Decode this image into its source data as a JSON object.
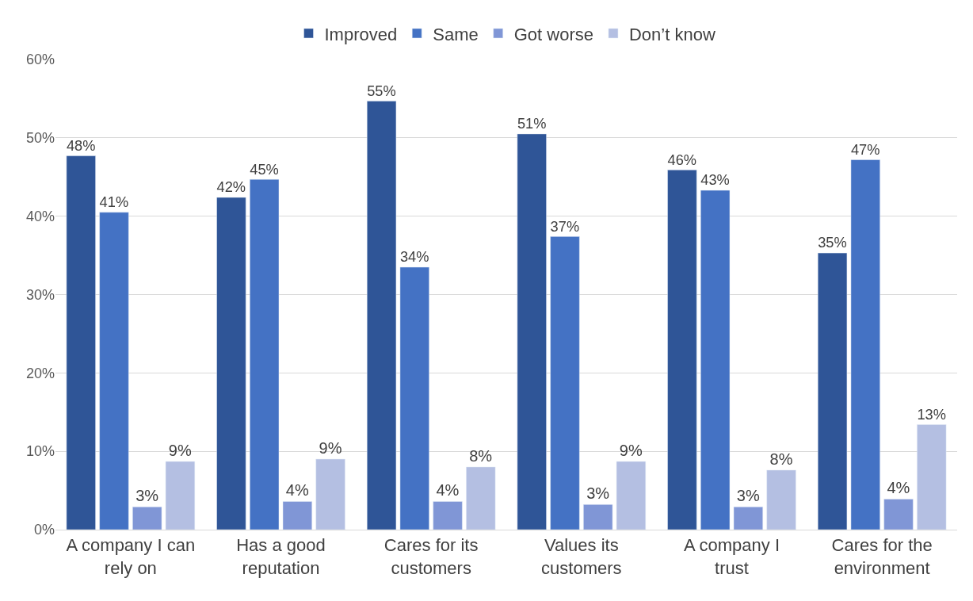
{
  "chart_data": {
    "type": "bar",
    "categories": [
      "A company I can rely on",
      "Has a good reputation",
      "Cares for its customers",
      "Values its customers",
      "A company I trust",
      "Cares for the environment"
    ],
    "series": [
      {
        "name": "Improved",
        "color": "#2f5597",
        "values": [
          47.7,
          42.4,
          54.7,
          50.5,
          45.9,
          35.3
        ],
        "value_labels": [
          "48%",
          "42%",
          "55%",
          "51%",
          "46%",
          "35%"
        ]
      },
      {
        "name": "Same",
        "color": "#4472c4",
        "values": [
          40.5,
          44.7,
          33.5,
          37.4,
          43.3,
          47.2
        ],
        "value_labels": [
          "41%",
          "45%",
          "34%",
          "37%",
          "43%",
          "47%"
        ]
      },
      {
        "name": "Got worse",
        "color": "#8096d6",
        "values": [
          2.9,
          3.6,
          3.6,
          3.2,
          2.9,
          3.9
        ],
        "value_labels": [
          "3%",
          "4%",
          "4%",
          "3%",
          "3%",
          "4%"
        ]
      },
      {
        "name": "Don’t know",
        "color": "#b4bfe2",
        "values": [
          8.7,
          9.0,
          8.0,
          8.7,
          7.6,
          13.4
        ],
        "value_labels": [
          "9%",
          "9%",
          "8%",
          "9%",
          "8%",
          "13%"
        ]
      }
    ],
    "ylim": [
      0,
      60
    ],
    "yticks": [
      {
        "value": 0,
        "label": "0%"
      },
      {
        "value": 10,
        "label": "10%"
      },
      {
        "value": 20,
        "label": "20%"
      },
      {
        "value": 30,
        "label": "30%"
      },
      {
        "value": 40,
        "label": "40%"
      },
      {
        "value": 50,
        "label": "50%"
      },
      {
        "value": 60,
        "label": "60%"
      }
    ],
    "grid": "y",
    "legend": "top"
  }
}
